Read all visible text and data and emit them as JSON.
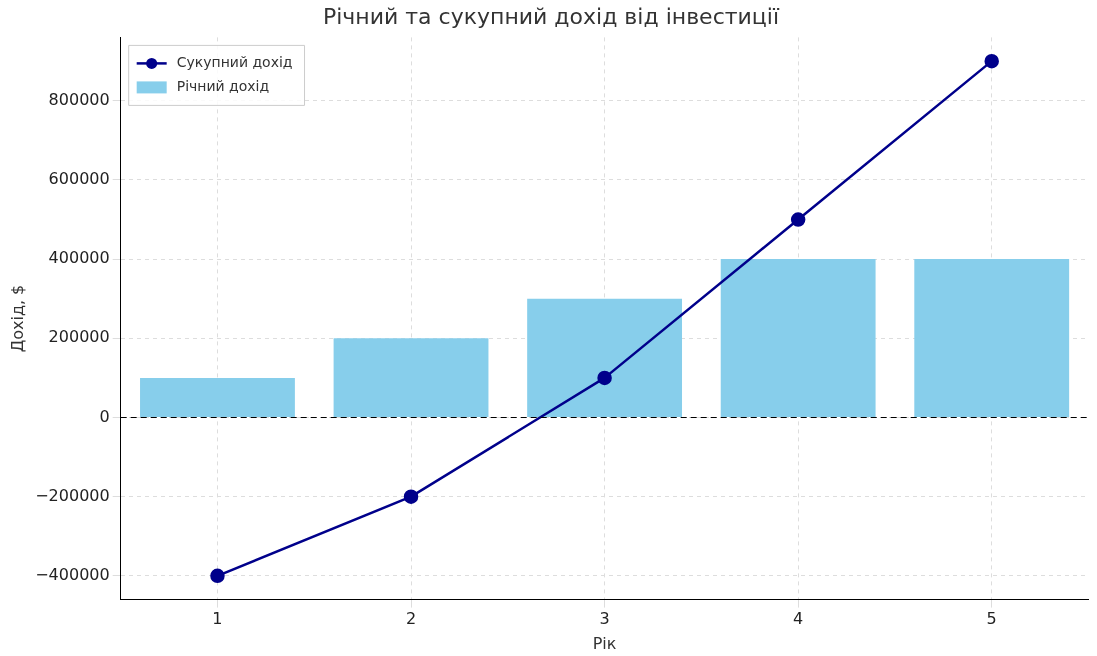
{
  "chart_data": {
    "type": "bar",
    "title": "Річний та сукупний дохід від інвестиції",
    "xlabel": "Рік",
    "ylabel": "Дохід, $",
    "categories": [
      "1",
      "2",
      "3",
      "4",
      "5"
    ],
    "series": [
      {
        "name": "Сукупний дохід",
        "type": "line",
        "color": "#00008b",
        "values": [
          -400000,
          -200000,
          100000,
          500000,
          900000
        ]
      },
      {
        "name": "Річний дохід",
        "color": "#87ceeb",
        "values": [
          100000,
          200000,
          300000,
          400000,
          400000
        ]
      }
    ],
    "ylim": [
      -460000,
      960000
    ],
    "yticks": [
      -400000,
      -200000,
      0,
      200000,
      400000,
      600000,
      800000
    ],
    "ref_lines": [
      {
        "axis": "y",
        "value": 0,
        "color": "#000000",
        "line_style": "dashed"
      }
    ],
    "grid": true,
    "legend": "top left",
    "marker": "circle",
    "line_style": "solid"
  }
}
